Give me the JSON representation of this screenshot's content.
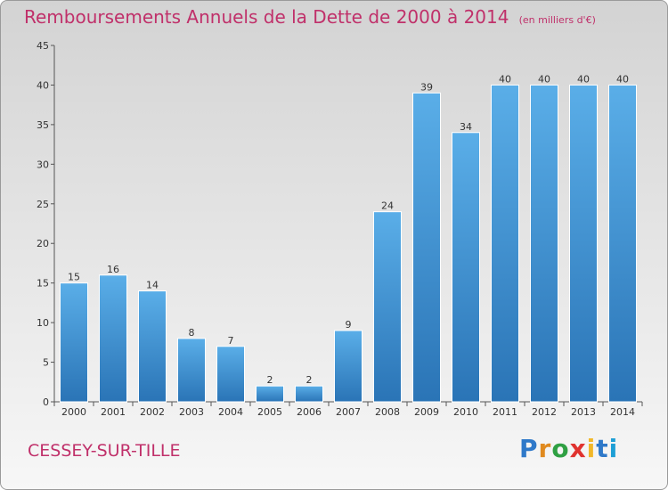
{
  "chart_data": {
    "type": "bar",
    "title": "Remboursements Annuels de la Dette de 2000 à 2014",
    "subtitle": "(en milliers d'€)",
    "categories": [
      "2000",
      "2001",
      "2002",
      "2003",
      "2004",
      "2005",
      "2006",
      "2007",
      "2008",
      "2009",
      "2010",
      "2011",
      "2012",
      "2013",
      "2014"
    ],
    "values": [
      15,
      16,
      14,
      8,
      7,
      2,
      2,
      9,
      24,
      39,
      34,
      40,
      40,
      40,
      40
    ],
    "ylim": [
      0,
      45
    ],
    "yticks": [
      0,
      5,
      10,
      15,
      20,
      25,
      30,
      35,
      40,
      45
    ],
    "grid": false,
    "bar_color": "#3d8fd6"
  },
  "commune": "CESSEY-SUR-TILLE",
  "logo": {
    "letters": [
      "P",
      "r",
      "o",
      "x",
      "i",
      "t",
      "i"
    ],
    "colors": [
      "#2f79c9",
      "#e08a1f",
      "#2fa043",
      "#e0332f",
      "#f1b82a",
      "#2f79c9",
      "#1f9fd5"
    ]
  }
}
